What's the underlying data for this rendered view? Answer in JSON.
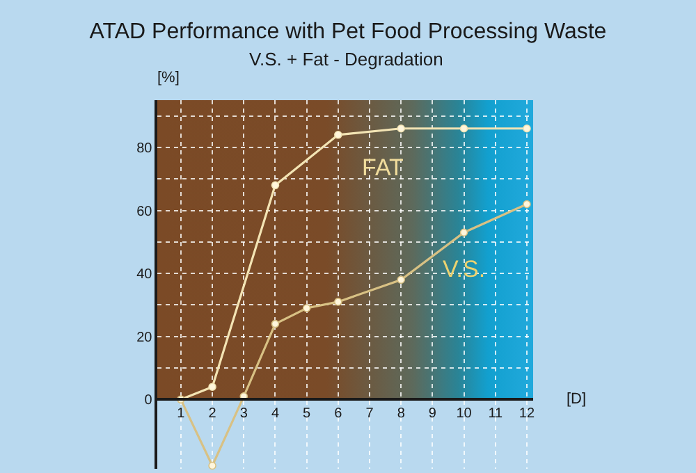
{
  "chart_data": {
    "type": "line",
    "title": "ATAD Performance with Pet Food Processing Waste",
    "subtitle": "V.S. + Fat - Degradation",
    "xlabel": "[D]",
    "ylabel": "[%]",
    "series": [
      {
        "name": "FAT",
        "color": "#f3e4b4",
        "x": [
          1,
          2,
          4,
          6,
          8,
          10,
          12
        ],
        "values": [
          0,
          4,
          68,
          84,
          86,
          86,
          86
        ]
      },
      {
        "name": "V.S.",
        "color": "#d8c184",
        "x": [
          1,
          2,
          3,
          4,
          5,
          6,
          8,
          10,
          12
        ],
        "values": [
          0,
          -21,
          1,
          24,
          29,
          31,
          38,
          53,
          62
        ]
      }
    ],
    "xlim": [
      0.25,
      12.2
    ],
    "xticks": [
      1,
      2,
      3,
      4,
      5,
      6,
      7,
      8,
      9,
      10,
      11,
      12
    ],
    "ylim": [
      -22,
      95
    ],
    "yticks": [
      0,
      {
        "value": 10,
        "label": null
      },
      20,
      {
        "value": 30,
        "label": null
      },
      40,
      {
        "value": 50,
        "label": null
      },
      60,
      {
        "value": 70,
        "label": null
      },
      80,
      {
        "value": 90,
        "label": null
      }
    ],
    "grid": true,
    "marker": "circle",
    "line_style": "solid",
    "legend": false
  }
}
